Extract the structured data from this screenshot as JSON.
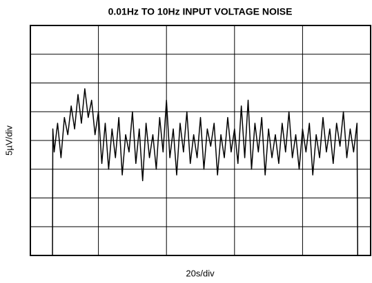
{
  "chart_data": {
    "type": "line",
    "title": "0.01Hz TO 10Hz INPUT VOLTAGE NOISE",
    "xlabel": "20s/div",
    "ylabel": "5µV/div",
    "color": "#000000",
    "grid": true,
    "xlim": [
      0,
      100
    ],
    "xticks": [
      0,
      20,
      40,
      60,
      80,
      100
    ],
    "ylim": [
      -20,
      20
    ],
    "yticks": [
      -20,
      -15,
      -10,
      -5,
      0,
      5,
      10,
      15,
      20
    ],
    "x": [
      6.5,
      6.6,
      7,
      8,
      9,
      10,
      11,
      12,
      13,
      14,
      15,
      16,
      17,
      18,
      19,
      20,
      21,
      22,
      23,
      24,
      25,
      26,
      27,
      28,
      29,
      30,
      31,
      32,
      33,
      34,
      35,
      36,
      37,
      38,
      39,
      40,
      41,
      42,
      43,
      44,
      45,
      46,
      47,
      48,
      49,
      50,
      51,
      52,
      53,
      54,
      55,
      56,
      57,
      58,
      59,
      60,
      61,
      62,
      63,
      64,
      65,
      66,
      67,
      68,
      69,
      70,
      71,
      72,
      73,
      74,
      75,
      76,
      77,
      78,
      79,
      80,
      81,
      82,
      83,
      84,
      85,
      86,
      87,
      88,
      89,
      90,
      91,
      92,
      93,
      94,
      95,
      96,
      96.2
    ],
    "values": [
      -20,
      2,
      -2,
      3,
      -3,
      4,
      1,
      6,
      2,
      8,
      3,
      9,
      4,
      7,
      1,
      5,
      -4,
      3,
      -5,
      2,
      -3,
      4,
      -6,
      1,
      -2,
      5,
      -4,
      2,
      -7,
      3,
      -3,
      1,
      -5,
      4,
      -2,
      7,
      -3,
      2,
      -6,
      3,
      -2,
      5,
      -4,
      1,
      -3,
      4,
      -5,
      2,
      -1,
      3,
      -6,
      1,
      -3,
      4,
      -2,
      2,
      -4,
      6,
      -3,
      7,
      -5,
      3,
      -2,
      4,
      -6,
      2,
      -3,
      1,
      -4,
      3,
      -2,
      5,
      -3,
      1,
      -5,
      2,
      -2,
      3,
      -6,
      1,
      -3,
      4,
      -2,
      2,
      -4,
      3,
      -1,
      5,
      -3,
      2,
      -2,
      3,
      -20
    ]
  }
}
